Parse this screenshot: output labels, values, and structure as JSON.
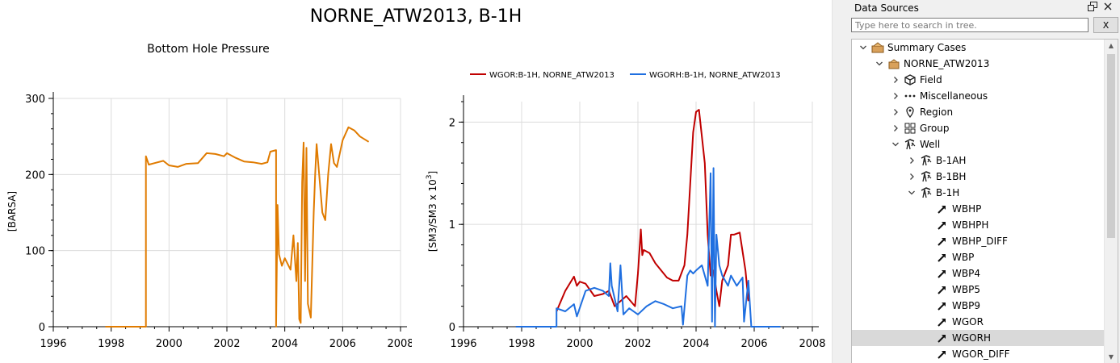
{
  "window": {
    "title": "NORNE_ATW2013, B-1H"
  },
  "charts": {
    "left": {
      "title": "Bottom Hole Pressure",
      "ylabel": "[BARSA]",
      "xticks": [
        "1996",
        "1998",
        "2000",
        "2002",
        "2004",
        "2006",
        "2008"
      ],
      "yticks": [
        "0",
        "100",
        "200",
        "300"
      ]
    },
    "right": {
      "ylabel": "[SM3/SM3 x 10",
      "ylabel_exp": "3",
      "ylabel_end": "]",
      "xticks": [
        "1996",
        "1998",
        "2000",
        "2002",
        "2004",
        "2006",
        "2008"
      ],
      "yticks": [
        "0",
        "1",
        "2"
      ],
      "legend": [
        {
          "name": "WGOR:B-1H, NORNE_ATW2013",
          "color": "#c00000"
        },
        {
          "name": "WGORH:B-1H, NORNE_ATW2013",
          "color": "#1f6fe0"
        }
      ]
    }
  },
  "chart_data": [
    {
      "type": "line",
      "title": "Bottom Hole Pressure",
      "xlabel": "",
      "ylabel": "[BARSA]",
      "xlim": [
        1996,
        2008
      ],
      "ylim": [
        0,
        300
      ],
      "grid": true,
      "series": [
        {
          "color": "#e07b00",
          "x": [
            1997.8,
            1999.2,
            1999.2,
            1999.3,
            1999.5,
            1999.8,
            2000.0,
            2000.3,
            2000.6,
            2001.0,
            2001.3,
            2001.6,
            2001.9,
            2002.0,
            2002.3,
            2002.6,
            2002.9,
            2003.2,
            2003.4,
            2003.5,
            2003.7,
            2003.7,
            2003.75,
            2003.8,
            2003.9,
            2004.0,
            2004.2,
            2004.3,
            2004.4,
            2004.45,
            2004.5,
            2004.55,
            2004.6,
            2004.65,
            2004.7,
            2004.75,
            2004.8,
            2004.9,
            2005.0,
            2005.05,
            2005.1,
            2005.3,
            2005.4,
            2005.5,
            2005.6,
            2005.7,
            2005.8,
            2006.0,
            2006.2,
            2006.4,
            2006.6,
            2006.9
          ],
          "y": [
            0,
            0,
            224,
            213,
            215,
            218,
            212,
            210,
            214,
            215,
            228,
            227,
            224,
            228,
            222,
            217,
            216,
            214,
            216,
            230,
            232,
            0,
            160,
            95,
            80,
            90,
            75,
            120,
            60,
            110,
            10,
            5,
            190,
            242,
            60,
            235,
            30,
            12,
            150,
            200,
            240,
            150,
            140,
            200,
            240,
            215,
            210,
            245,
            262,
            258,
            250,
            243
          ]
        }
      ]
    },
    {
      "type": "line",
      "title": "",
      "xlabel": "",
      "ylabel": "[SM3/SM3 x 10^3]",
      "xlim": [
        1996,
        2008
      ],
      "ylim": [
        0,
        2.2
      ],
      "grid": true,
      "legend": "top",
      "series": [
        {
          "name": "WGOR:B-1H, NORNE_ATW2013",
          "color": "#c00000",
          "x": [
            1999.2,
            1999.5,
            1999.8,
            1999.9,
            2000.0,
            2000.2,
            2000.5,
            2000.8,
            2001.0,
            2001.2,
            2001.6,
            2001.9,
            2002.0,
            2002.1,
            2002.15,
            2002.2,
            2002.4,
            2002.6,
            2002.8,
            2003.0,
            2003.2,
            2003.4,
            2003.6,
            2003.7,
            2003.8,
            2003.9,
            2004.0,
            2004.1,
            2004.3,
            2004.4,
            2004.5,
            2004.6,
            2004.7,
            2004.8,
            2004.9,
            2005.1,
            2005.2,
            2005.3,
            2005.5,
            2005.7,
            2005.8
          ],
          "y": [
            0.15,
            0.35,
            0.49,
            0.4,
            0.44,
            0.42,
            0.3,
            0.32,
            0.35,
            0.2,
            0.3,
            0.2,
            0.52,
            0.95,
            0.7,
            0.75,
            0.72,
            0.62,
            0.55,
            0.48,
            0.45,
            0.45,
            0.6,
            0.9,
            1.4,
            1.9,
            2.1,
            2.12,
            1.6,
            0.9,
            0.5,
            0.55,
            0.35,
            0.2,
            0.45,
            0.6,
            0.9,
            0.9,
            0.92,
            0.55,
            0.25
          ]
        },
        {
          "name": "WGORH:B-1H, NORNE_ATW2013",
          "color": "#1f6fe0",
          "x": [
            1997.8,
            1999.2,
            1999.2,
            1999.5,
            1999.8,
            1999.9,
            2000.2,
            2000.5,
            2000.8,
            2001.0,
            2001.05,
            2001.1,
            2001.3,
            2001.4,
            2001.5,
            2001.7,
            2002.0,
            2002.3,
            2002.6,
            2002.9,
            2003.2,
            2003.5,
            2003.55,
            2003.7,
            2003.8,
            2003.9,
            2004.0,
            2004.2,
            2004.4,
            2004.5,
            2004.55,
            2004.6,
            2004.65,
            2004.7,
            2004.8,
            2004.9,
            2005.0,
            2005.1,
            2005.2,
            2005.4,
            2005.6,
            2005.65,
            2005.8,
            2005.9,
            2006.9
          ],
          "y": [
            0,
            0,
            0.18,
            0.15,
            0.22,
            0.1,
            0.35,
            0.38,
            0.35,
            0.3,
            0.62,
            0.4,
            0.15,
            0.6,
            0.12,
            0.18,
            0.12,
            0.2,
            0.25,
            0.22,
            0.18,
            0.2,
            0.02,
            0.5,
            0.55,
            0.52,
            0.55,
            0.6,
            0.4,
            1.5,
            0.05,
            1.55,
            0.0,
            0.9,
            0.6,
            0.5,
            0.45,
            0.4,
            0.5,
            0.4,
            0.48,
            0.05,
            0.45,
            0.0,
            0.0
          ]
        }
      ]
    }
  ],
  "dock": {
    "title": "Data Sources",
    "float_icon": "float-icon",
    "close_icon": "close-icon",
    "search": {
      "placeholder": "Type here to search in tree.",
      "clear_label": "X"
    },
    "tree": [
      {
        "label": "Summary Cases",
        "level": 0,
        "arrow": "down",
        "icon": "summary-cases-icon"
      },
      {
        "label": "NORNE_ATW2013",
        "level": 1,
        "arrow": "down",
        "icon": "case-icon"
      },
      {
        "label": "Field",
        "level": 2,
        "arrow": "right",
        "icon": "cube-icon"
      },
      {
        "label": "Miscellaneous",
        "level": 2,
        "arrow": "right",
        "icon": "dots-icon"
      },
      {
        "label": "Region",
        "level": 2,
        "arrow": "right",
        "icon": "location-pin-icon"
      },
      {
        "label": "Group",
        "level": 2,
        "arrow": "right",
        "icon": "group-icon"
      },
      {
        "label": "Well",
        "level": 2,
        "arrow": "down",
        "icon": "well-icon"
      },
      {
        "label": "B-1AH",
        "level": 3,
        "arrow": "right",
        "icon": "well-icon"
      },
      {
        "label": "B-1BH",
        "level": 3,
        "arrow": "right",
        "icon": "well-icon"
      },
      {
        "label": "B-1H",
        "level": 3,
        "arrow": "down",
        "icon": "well-icon"
      },
      {
        "label": "WBHP",
        "level": 4,
        "arrow": "",
        "icon": "vector-icon"
      },
      {
        "label": "WBHPH",
        "level": 4,
        "arrow": "",
        "icon": "vector-icon"
      },
      {
        "label": "WBHP_DIFF",
        "level": 4,
        "arrow": "",
        "icon": "vector-icon"
      },
      {
        "label": "WBP",
        "level": 4,
        "arrow": "",
        "icon": "vector-icon"
      },
      {
        "label": "WBP4",
        "level": 4,
        "arrow": "",
        "icon": "vector-icon"
      },
      {
        "label": "WBP5",
        "level": 4,
        "arrow": "",
        "icon": "vector-icon"
      },
      {
        "label": "WBP9",
        "level": 4,
        "arrow": "",
        "icon": "vector-icon"
      },
      {
        "label": "WGOR",
        "level": 4,
        "arrow": "",
        "icon": "vector-icon"
      },
      {
        "label": "WGORH",
        "level": 4,
        "arrow": "",
        "icon": "vector-icon",
        "selected": true
      },
      {
        "label": "WGOR_DIFF",
        "level": 4,
        "arrow": "",
        "icon": "vector-icon"
      }
    ],
    "scrollbar": {
      "position": 0.0
    }
  }
}
